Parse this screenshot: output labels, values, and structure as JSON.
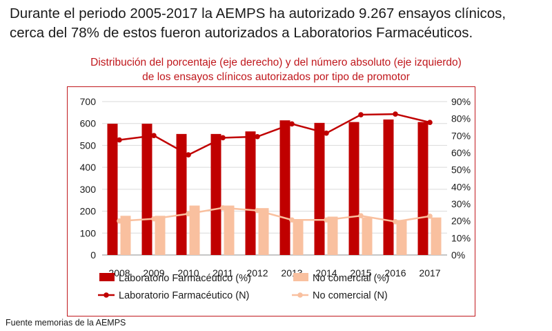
{
  "headline": {
    "line1": "Durante el periodo 2005-2017 la AEMPS ha autorizado 9.267 ensayos clínicos,",
    "line2": "cerca del 78% de estos fueron autorizados a Laboratorios Farmacéuticos."
  },
  "footer": "Fuente memorias de la AEMPS",
  "colors": {
    "lab": "#c00000",
    "nocom": "#f9c09f",
    "title": "#c0171c",
    "grid": "#d9d9d9"
  },
  "chart_data": {
    "type": "bar",
    "title": [
      "Distribución del porcentaje (eje derecho) y del número absoluto (eje izquierdo)",
      "de los ensayos clínicos autorizados por tipo de promotor"
    ],
    "categories": [
      "2008",
      "2009",
      "2010",
      "2011",
      "2012",
      "2013",
      "2014",
      "2015",
      "2016",
      "2017"
    ],
    "yleft": {
      "min": 0,
      "max": 700,
      "ticks": [
        "0",
        "100",
        "200",
        "300",
        "400",
        "500",
        "600",
        "700"
      ]
    },
    "yright": {
      "min": 0,
      "max": 90,
      "ticks": [
        "0%",
        "10%",
        "20%",
        "30%",
        "40%",
        "50%",
        "60%",
        "70%",
        "80%",
        "90%"
      ]
    },
    "grid": true,
    "legend_position": "bottom",
    "series": [
      {
        "name": "Laboratorio Farmacéutico (%)",
        "kind": "bar",
        "axis": "right",
        "values": [
          77,
          77,
          71,
          71,
          72.5,
          79,
          77.5,
          78,
          79.5,
          78
        ]
      },
      {
        "name": "No comercial (%)",
        "kind": "bar",
        "axis": "right",
        "values": [
          23,
          23,
          29,
          29,
          27.5,
          21,
          22.5,
          22,
          20.5,
          22
        ]
      },
      {
        "name": "Laboratorio Farmacéutico (N)",
        "kind": "line",
        "axis": "left",
        "values": [
          525,
          545,
          457,
          535,
          540,
          598,
          556,
          640,
          643,
          605
        ]
      },
      {
        "name": "No comercial (N)",
        "kind": "line",
        "axis": "left",
        "values": [
          155,
          165,
          188,
          215,
          203,
          160,
          160,
          179,
          152,
          177
        ]
      }
    ]
  }
}
